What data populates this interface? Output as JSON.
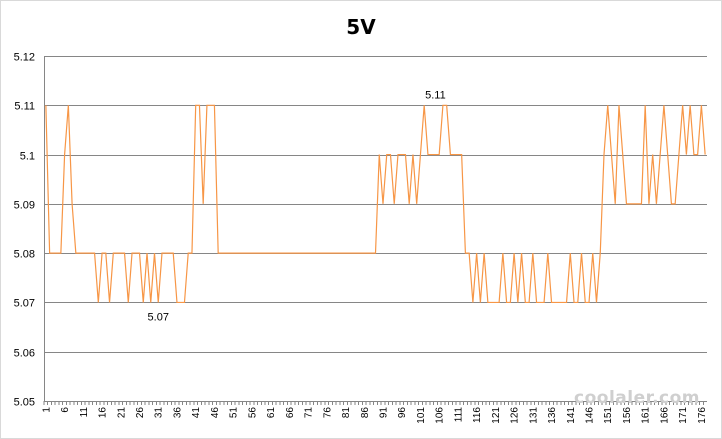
{
  "chart_data": {
    "type": "line",
    "title": "5V",
    "ylim": [
      5.05,
      5.12
    ],
    "ytick_labels": [
      "5.05",
      "5.06",
      "5.07",
      "5.08",
      "5.09",
      "5.1",
      "5.11",
      "5.12"
    ],
    "x_tick_step": 5,
    "grid": "horizontal",
    "legend": "none",
    "series": [
      {
        "color": "#f79646",
        "values": [
          5.11,
          5.08,
          5.08,
          5.08,
          5.08,
          5.1,
          5.11,
          5.09,
          5.08,
          5.08,
          5.08,
          5.08,
          5.08,
          5.08,
          5.07,
          5.08,
          5.08,
          5.07,
          5.08,
          5.08,
          5.08,
          5.08,
          5.07,
          5.08,
          5.08,
          5.08,
          5.07,
          5.08,
          5.07,
          5.08,
          5.07,
          5.08,
          5.08,
          5.08,
          5.08,
          5.07,
          5.07,
          5.07,
          5.08,
          5.08,
          5.11,
          5.11,
          5.09,
          5.11,
          5.11,
          5.11,
          5.08,
          5.08,
          5.08,
          5.08,
          5.08,
          5.08,
          5.08,
          5.08,
          5.08,
          5.08,
          5.08,
          5.08,
          5.08,
          5.08,
          5.08,
          5.08,
          5.08,
          5.08,
          5.08,
          5.08,
          5.08,
          5.08,
          5.08,
          5.08,
          5.08,
          5.08,
          5.08,
          5.08,
          5.08,
          5.08,
          5.08,
          5.08,
          5.08,
          5.08,
          5.08,
          5.08,
          5.08,
          5.08,
          5.08,
          5.08,
          5.08,
          5.08,
          5.08,
          5.1,
          5.09,
          5.1,
          5.1,
          5.09,
          5.1,
          5.1,
          5.1,
          5.09,
          5.1,
          5.09,
          5.1,
          5.11,
          5.1,
          5.1,
          5.1,
          5.1,
          5.11,
          5.11,
          5.1,
          5.1,
          5.1,
          5.1,
          5.08,
          5.08,
          5.07,
          5.08,
          5.07,
          5.08,
          5.07,
          5.07,
          5.07,
          5.07,
          5.08,
          5.07,
          5.07,
          5.08,
          5.07,
          5.08,
          5.07,
          5.07,
          5.08,
          5.07,
          5.07,
          5.07,
          5.08,
          5.07,
          5.07,
          5.07,
          5.07,
          5.07,
          5.08,
          5.07,
          5.07,
          5.08,
          5.07,
          5.07,
          5.08,
          5.07,
          5.08,
          5.1,
          5.11,
          5.1,
          5.09,
          5.11,
          5.1,
          5.09,
          5.09,
          5.09,
          5.09,
          5.09,
          5.11,
          5.09,
          5.1,
          5.09,
          5.1,
          5.11,
          5.1,
          5.09,
          5.09,
          5.1,
          5.11,
          5.1,
          5.11,
          5.1,
          5.1,
          5.11,
          5.1
        ]
      }
    ],
    "annotations": [
      {
        "text": "5.11",
        "x": 105,
        "y": 5.11
      },
      {
        "text": "5.07",
        "x": 31,
        "y": 5.07
      }
    ]
  },
  "watermark": {
    "text": "coolaler.com"
  }
}
